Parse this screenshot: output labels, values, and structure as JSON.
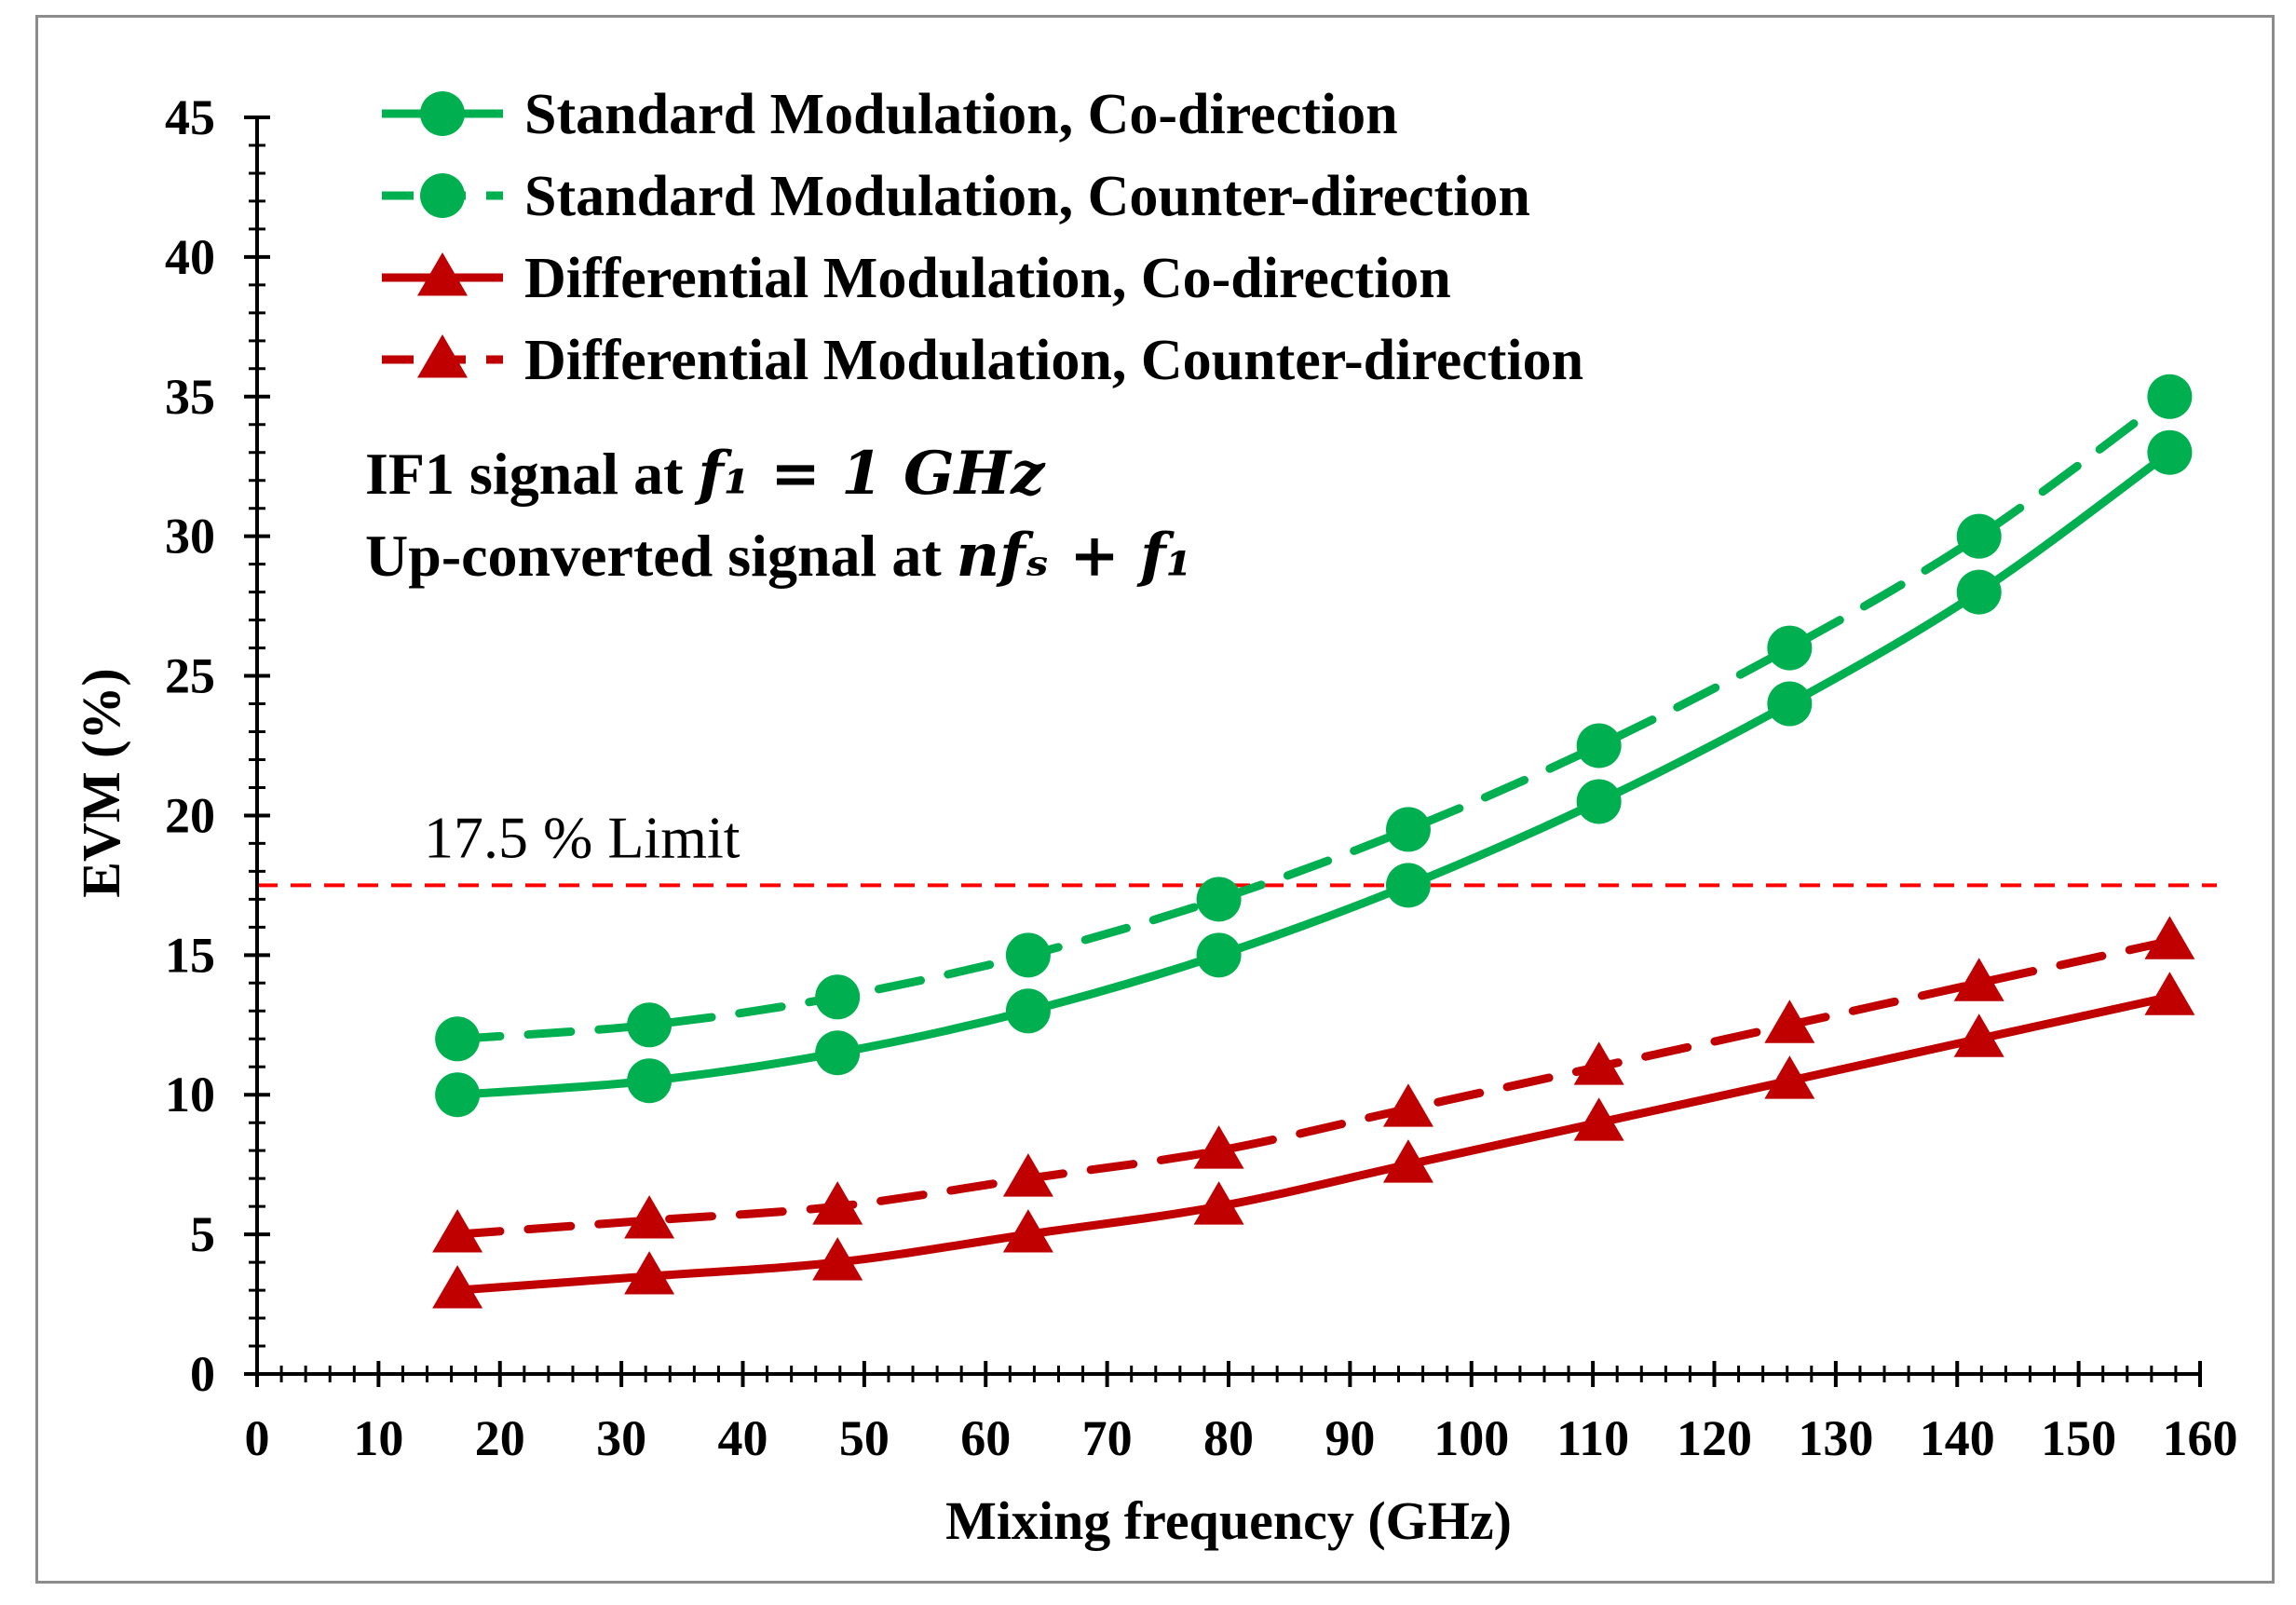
{
  "chart_data": {
    "type": "line",
    "xlabel": "Mixing frequency (GHz)",
    "ylabel": "EVM (%)",
    "xlim": [
      0,
      160
    ],
    "ylim": [
      0,
      45
    ],
    "xticks": [
      0,
      10,
      20,
      30,
      40,
      50,
      60,
      70,
      80,
      90,
      100,
      110,
      120,
      130,
      140,
      150,
      160
    ],
    "yticks": [
      0,
      5,
      10,
      15,
      20,
      25,
      30,
      35,
      40,
      45
    ],
    "x": [
      16.5,
      32.3,
      47.8,
      63.5,
      79.2,
      94.8,
      110.5,
      126.2,
      141.8,
      157.5
    ],
    "series": [
      {
        "name": "Standard Modulation, Co-direction",
        "color": "#00b050",
        "marker": "circle",
        "dash": "solid",
        "values": [
          10,
          10.5,
          11.5,
          13,
          15,
          17.5,
          20.5,
          24,
          28,
          33
        ]
      },
      {
        "name": "Standard Modulation, Counter-direction",
        "color": "#00b050",
        "marker": "circle",
        "dash": "dashed",
        "values": [
          12,
          12.5,
          13.5,
          15,
          17,
          19.5,
          22.5,
          26,
          30,
          35
        ]
      },
      {
        "name": "Differential Modulation, Co-direction",
        "color": "#c00000",
        "marker": "triangle",
        "dash": "solid",
        "values": [
          3,
          3.5,
          4,
          5,
          6,
          7.5,
          9,
          10.5,
          12,
          13.5
        ]
      },
      {
        "name": "Differential Modulation, Counter-direction",
        "color": "#c00000",
        "marker": "triangle",
        "dash": "dashed",
        "values": [
          5,
          5.5,
          6,
          7,
          8,
          9.5,
          11,
          12.5,
          14,
          15.5
        ]
      }
    ],
    "reference_line": {
      "y": 17.5,
      "label": "17.5 % Limit",
      "color": "#ff0000"
    },
    "annotations": {
      "line1_text": "IF1 signal at ",
      "line1_math": "f₁ = 1 GHz",
      "line2_text": "Up-converted signal at ",
      "line2_math": "nfₛ + f₁"
    },
    "legend_position": "top-left"
  }
}
